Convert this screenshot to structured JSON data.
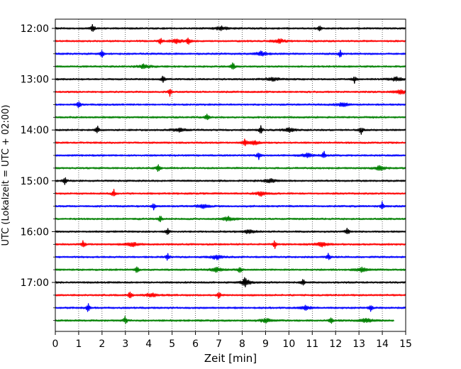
{
  "chart_data": {
    "type": "line",
    "title": "",
    "xlabel": "Zeit  [min]",
    "ylabel": "UTC (Lokalzeit = UTC + 02:00)",
    "xlim": [
      0,
      15
    ],
    "x_ticks": [
      "0",
      "1",
      "2",
      "3",
      "4",
      "5",
      "6",
      "7",
      "8",
      "9",
      "10",
      "11",
      "12",
      "13",
      "14",
      "15"
    ],
    "y_ticks": [
      "12:00",
      "13:00",
      "14:00",
      "15:00",
      "16:00",
      "17:00"
    ],
    "grid": "vertical dotted",
    "trace_colors": [
      "#000000",
      "#ff0000",
      "#0000ff",
      "#008000"
    ],
    "trace_interval_minutes": 15,
    "traces": [
      {
        "start": "12:00",
        "color": "#000000",
        "events": [
          1.6,
          7.1,
          11.3
        ]
      },
      {
        "start": "12:15",
        "color": "#ff0000",
        "events": [
          4.5,
          5.2,
          5.7,
          9.6
        ]
      },
      {
        "start": "12:30",
        "color": "#0000ff",
        "events": [
          2.0,
          8.8,
          12.2
        ]
      },
      {
        "start": "12:45",
        "color": "#008000",
        "events": [
          7.6,
          3.8
        ]
      },
      {
        "start": "13:00",
        "color": "#000000",
        "events": [
          4.6,
          9.3,
          12.8,
          14.6
        ]
      },
      {
        "start": "13:15",
        "color": "#ff0000",
        "events": [
          4.9,
          14.8
        ]
      },
      {
        "start": "13:30",
        "color": "#0000ff",
        "events": [
          1.0,
          12.3
        ]
      },
      {
        "start": "13:45",
        "color": "#008000",
        "events": [
          6.5
        ]
      },
      {
        "start": "14:00",
        "color": "#000000",
        "events": [
          1.8,
          5.3,
          8.8,
          10.0,
          13.1
        ]
      },
      {
        "start": "14:15",
        "color": "#ff0000",
        "events": [
          8.1,
          8.5
        ]
      },
      {
        "start": "14:30",
        "color": "#0000ff",
        "events": [
          8.7,
          10.8,
          11.5
        ]
      },
      {
        "start": "14:45",
        "color": "#008000",
        "events": [
          4.4,
          13.9
        ]
      },
      {
        "start": "15:00",
        "color": "#000000",
        "events": [
          0.4,
          9.2
        ]
      },
      {
        "start": "15:15",
        "color": "#ff0000",
        "events": [
          2.5,
          8.8
        ]
      },
      {
        "start": "15:30",
        "color": "#0000ff",
        "events": [
          4.2,
          6.3,
          14.0
        ]
      },
      {
        "start": "15:45",
        "color": "#008000",
        "events": [
          4.5,
          7.4
        ]
      },
      {
        "start": "16:00",
        "color": "#000000",
        "events": [
          4.8,
          8.3,
          12.5
        ]
      },
      {
        "start": "16:15",
        "color": "#ff0000",
        "events": [
          1.2,
          3.3,
          9.4,
          11.4
        ]
      },
      {
        "start": "16:30",
        "color": "#0000ff",
        "events": [
          4.8,
          6.9,
          11.7
        ]
      },
      {
        "start": "16:45",
        "color": "#008000",
        "events": [
          3.5,
          6.9,
          7.9,
          13.1
        ]
      },
      {
        "start": "17:00",
        "color": "#000000",
        "events": [
          8.1,
          8.2,
          10.6
        ]
      },
      {
        "start": "17:15",
        "color": "#ff0000",
        "events": [
          3.2,
          4.1,
          7.0
        ]
      },
      {
        "start": "17:30",
        "color": "#0000ff",
        "events": [
          1.4,
          10.7,
          13.5
        ]
      },
      {
        "start": "17:45",
        "color": "#008000",
        "events": [
          3.0,
          9.0,
          11.8,
          13.3
        ]
      }
    ],
    "last_trace_end_min": 14.5
  }
}
